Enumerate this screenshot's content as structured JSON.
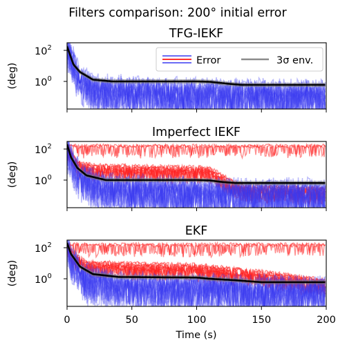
{
  "figure": {
    "title": "Filters comparison: 200° initial error",
    "xlabel": "Time (s)"
  },
  "legend": {
    "error_label": "Error",
    "env_label": "3σ env."
  },
  "colors": {
    "error_blue": "#3a3af0",
    "error_red": "#ff1f1f",
    "envelope": "#000000",
    "grey": "#7a7a7a"
  },
  "chart_data": [
    {
      "type": "line",
      "title": "TFG-IEKF",
      "ylabel": "(deg)",
      "yscale": "log",
      "xlim": [
        0,
        200
      ],
      "ylim": [
        0.04,
        300
      ],
      "x_ticks": [
        0,
        50,
        100,
        150,
        200
      ],
      "y_ticks": [
        "10^0",
        "10^2"
      ],
      "legend": "top-right",
      "series": [
        {
          "name": "Error",
          "color": "blue",
          "points": [
            [
              0,
              150
            ],
            [
              3,
              40
            ],
            [
              6,
              8
            ],
            [
              10,
              1.5
            ],
            [
              20,
              0.3
            ],
            [
              60,
              0.2
            ],
            [
              120,
              0.15
            ],
            [
              200,
              0.12
            ]
          ]
        },
        {
          "name": "3σ env.",
          "color": "black",
          "points": [
            [
              0,
              180
            ],
            [
              2,
              60
            ],
            [
              5,
              12
            ],
            [
              10,
              4
            ],
            [
              20,
              1.3
            ],
            [
              35,
              1.0
            ],
            [
              60,
              1.0
            ],
            [
              100,
              1.0
            ],
            [
              110,
              0.95
            ],
            [
              125,
              0.7
            ],
            [
              135,
              0.6
            ],
            [
              200,
              0.6
            ]
          ]
        }
      ]
    },
    {
      "type": "line",
      "title": "Imperfect IEKF",
      "ylabel": "(deg)",
      "yscale": "log",
      "xlim": [
        0,
        200
      ],
      "ylim": [
        0.04,
        300
      ],
      "x_ticks": [
        0,
        50,
        100,
        150,
        200
      ],
      "y_ticks": [
        "10^0",
        "10^2"
      ],
      "series": [
        {
          "name": "Error",
          "color": "red",
          "points": [
            [
              0,
              150
            ],
            [
              10,
              150
            ],
            [
              200,
              150
            ]
          ]
        },
        {
          "name": "Error",
          "color": "red",
          "points": [
            [
              0,
              150
            ],
            [
              3,
              40
            ],
            [
              8,
              10
            ],
            [
              20,
              6
            ],
            [
              60,
              5
            ],
            [
              100,
              4.5
            ],
            [
              110,
              4
            ],
            [
              128,
              0.5
            ],
            [
              140,
              0.25
            ],
            [
              200,
              0.2
            ]
          ]
        },
        {
          "name": "Error",
          "color": "blue",
          "points": [
            [
              0,
              150
            ],
            [
              5,
              10
            ],
            [
              12,
              1
            ],
            [
              30,
              0.3
            ],
            [
              100,
              0.15
            ],
            [
              200,
              0.12
            ]
          ]
        },
        {
          "name": "3σ env.",
          "color": "black",
          "points": [
            [
              0,
              200
            ],
            [
              3,
              30
            ],
            [
              8,
              6
            ],
            [
              15,
              2
            ],
            [
              30,
              1.0
            ],
            [
              100,
              1.0
            ],
            [
              110,
              0.95
            ],
            [
              120,
              0.75
            ],
            [
              130,
              0.65
            ],
            [
              200,
              0.65
            ]
          ]
        }
      ]
    },
    {
      "type": "line",
      "title": "EKF",
      "ylabel": "(deg)",
      "yscale": "log",
      "xlim": [
        0,
        200
      ],
      "ylim": [
        0.04,
        300
      ],
      "x_ticks": [
        0,
        50,
        100,
        150,
        200
      ],
      "y_ticks": [
        "10^0",
        "10^2"
      ],
      "series": [
        {
          "name": "Error",
          "color": "red",
          "points": [
            [
              0,
              150
            ],
            [
              10,
              150
            ],
            [
              200,
              150
            ]
          ]
        },
        {
          "name": "Error",
          "color": "red",
          "points": [
            [
              0,
              150
            ],
            [
              5,
              30
            ],
            [
              15,
              8
            ],
            [
              60,
              6
            ],
            [
              100,
              5
            ],
            [
              130,
              3
            ],
            [
              160,
              1.5
            ],
            [
              200,
              0.5
            ]
          ]
        },
        {
          "name": "Error",
          "color": "blue",
          "points": [
            [
              0,
              150
            ],
            [
              5,
              10
            ],
            [
              15,
              1
            ],
            [
              40,
              0.3
            ],
            [
              200,
              0.15
            ]
          ]
        },
        {
          "name": "3σ env.",
          "color": "black",
          "points": [
            [
              0,
              200
            ],
            [
              3,
              40
            ],
            [
              10,
              6
            ],
            [
              20,
              2
            ],
            [
              40,
              1.3
            ],
            [
              100,
              1.2
            ],
            [
              110,
              1.0
            ],
            [
              130,
              0.8
            ],
            [
              150,
              0.6
            ],
            [
              200,
              0.6
            ]
          ]
        }
      ]
    }
  ]
}
